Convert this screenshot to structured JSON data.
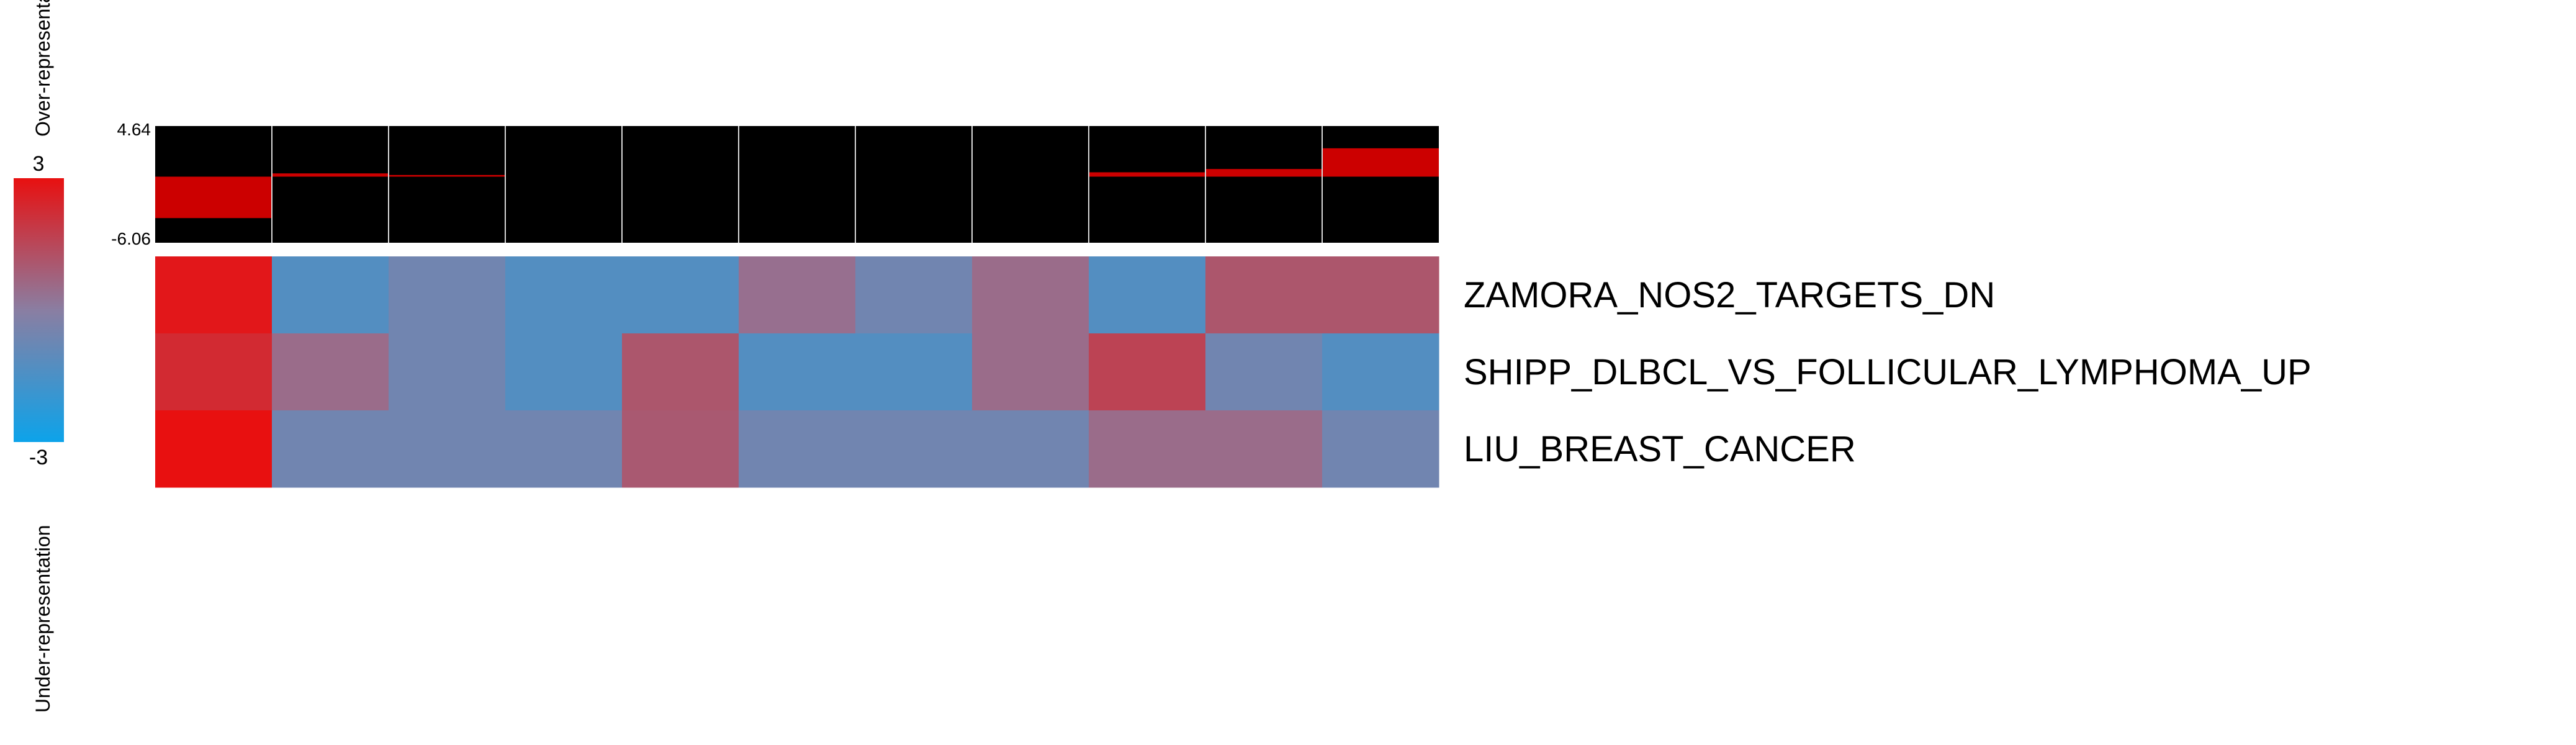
{
  "chart_data": {
    "type": "heatmap",
    "legend": {
      "max_label": "3",
      "min_label": "-3",
      "upper_text": "Over-representation",
      "lower_text": "Under-representation",
      "range": [
        -3,
        3
      ],
      "colors": {
        "high": "#e81010",
        "mid": "#8a7ea2",
        "low": "#0ca3ea"
      }
    },
    "bar_track": {
      "max_label": "4.64",
      "min_label": "-6.06",
      "range": [
        -6.06,
        4.64
      ],
      "bar_color": "#cc0000",
      "background": "#000000",
      "values": [
        -3.8,
        0.3,
        0.15,
        0,
        0,
        0,
        0,
        0,
        0.4,
        0.7,
        2.6
      ]
    },
    "rows": [
      "ZAMORA_NOS2_TARGETS_DN",
      "SHIPP_DLBCL_VS_FOLLICULAR_LYMPHOMA_UP",
      "LIU_BREAST_CANCER"
    ],
    "columns": 11,
    "values": [
      [
        2.8,
        -1.3,
        -0.6,
        -1.3,
        -1.3,
        0.4,
        -0.6,
        0.5,
        -1.3,
        1.1,
        1.1
      ],
      [
        2.3,
        0.5,
        -0.6,
        -1.3,
        1.1,
        -1.3,
        -1.3,
        0.5,
        1.6,
        -0.6,
        -1.3
      ],
      [
        3.2,
        -0.6,
        -0.6,
        -0.6,
        1.0,
        -0.6,
        -0.6,
        -0.6,
        0.5,
        0.5,
        -0.6
      ]
    ]
  }
}
